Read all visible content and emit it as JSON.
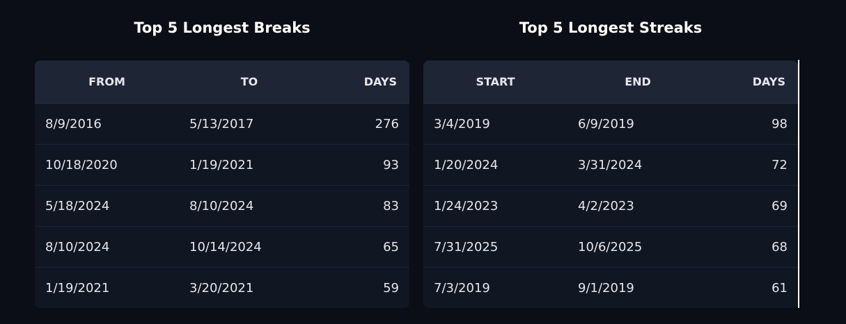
{
  "tables": [
    {
      "title": "Top 5 Longest Breaks",
      "headers": [
        "FROM",
        "TO",
        "DAYS"
      ],
      "rows": [
        [
          "8/9/2016",
          "5/13/2017",
          276
        ],
        [
          "10/18/2020",
          "1/19/2021",
          93
        ],
        [
          "5/18/2024",
          "8/10/2024",
          83
        ],
        [
          "8/10/2024",
          "10/14/2024",
          65
        ],
        [
          "1/19/2021",
          "3/20/2021",
          59
        ]
      ]
    },
    {
      "title": "Top 5 Longest Streaks",
      "headers": [
        "START",
        "END",
        "DAYS"
      ],
      "rows": [
        [
          "3/4/2019",
          "6/9/2019",
          98
        ],
        [
          "1/20/2024",
          "3/31/2024",
          72
        ],
        [
          "1/24/2023",
          "4/2/2023",
          69
        ],
        [
          "7/31/2025",
          "10/6/2025",
          68
        ],
        [
          "7/3/2019",
          "9/1/2019",
          61
        ]
      ]
    }
  ]
}
